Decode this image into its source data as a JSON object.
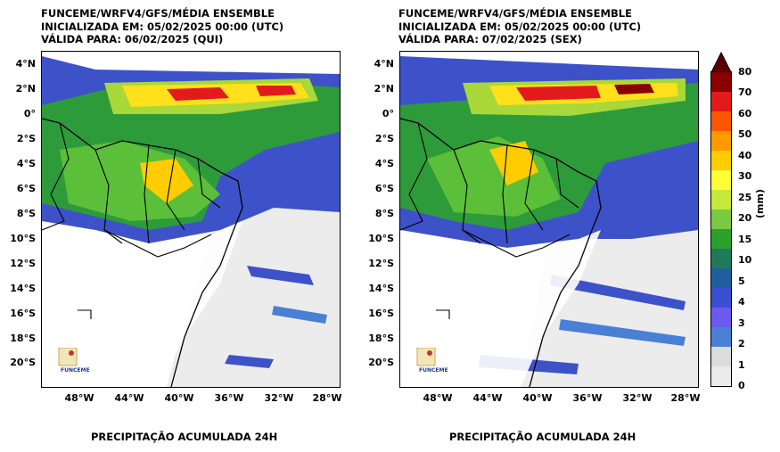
{
  "left_panel": {
    "title_line1": "FUNCEME/WRFV4/GFS/MÉDIA ENSEMBLE",
    "title_line2": "INICIALIZADA EM: 05/02/2025 00:00 (UTC)",
    "title_line3": "VÁLIDA PARA: 06/02/2025 (QUI)",
    "caption": "PRECIPITAÇÃO ACUMULADA 24H",
    "logo_text": "FUNCEME"
  },
  "right_panel": {
    "title_line1": "FUNCEME/WRFV4/GFS/MÉDIA ENSEMBLE",
    "title_line2": "INICIALIZADA EM: 05/02/2025 00:00 (UTC)",
    "title_line3": "VÁLIDA PARA: 07/02/2025 (SEX)",
    "caption": "PRECIPITAÇÃO ACUMULADA 24H",
    "logo_text": "FUNCEME"
  },
  "lat_labels": [
    "4°N",
    "2°N",
    "0°",
    "2°S",
    "4°S",
    "6°S",
    "8°S",
    "10°S",
    "12°S",
    "14°S",
    "16°S",
    "18°S",
    "20°S"
  ],
  "lon_labels": [
    "48°W",
    "44°W",
    "40°W",
    "36°W",
    "32°W",
    "28°W"
  ],
  "colorbar": {
    "unit": "(mm)",
    "ticks": [
      "80",
      "70",
      "60",
      "50",
      "40",
      "30",
      "25",
      "20",
      "15",
      "10",
      "5",
      "4",
      "3",
      "2",
      "1",
      "0"
    ],
    "colors": [
      "#8b0000",
      "#e31a1c",
      "#ff5500",
      "#ff9900",
      "#ffcc00",
      "#ffff33",
      "#c6e83a",
      "#7ac943",
      "#2ca02c",
      "#1f7a5a",
      "#1f5f9e",
      "#3a4fd1",
      "#6a5af0",
      "#4a7fd6",
      "#dcdcdc",
      "#ebebeb",
      "#f7f7f7"
    ]
  }
}
